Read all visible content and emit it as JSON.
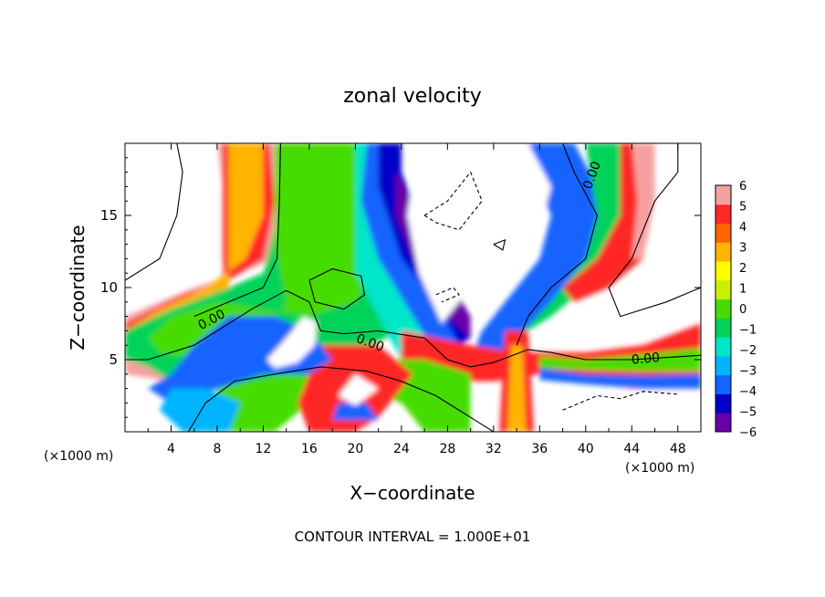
{
  "chart_data": {
    "type": "heatmap",
    "title": "zonal velocity",
    "xlabel": "X−coordinate",
    "ylabel": "Z−coordinate",
    "x_unit_note": "(×1000 m)",
    "z_unit_note": "(×1000 m)",
    "xlim": [
      0,
      50
    ],
    "ylim": [
      0,
      20
    ],
    "x_ticks": [
      4,
      8,
      12,
      16,
      20,
      24,
      28,
      32,
      36,
      40,
      44,
      48
    ],
    "y_ticks": [
      5,
      10,
      15
    ],
    "colorbar": {
      "ticks": [
        6,
        5,
        4,
        3,
        2,
        1,
        0,
        -1,
        -2,
        -3,
        -4,
        -5,
        -6
      ],
      "range": [
        -6,
        6
      ],
      "colors": [
        "#6a00a8",
        "#0000c8",
        "#1464ff",
        "#00b4ff",
        "#00e6c8",
        "#00d25a",
        "#46dc00",
        "#c8f000",
        "#ffff00",
        "#ffb400",
        "#ff6400",
        "#ff2828",
        "#f5a0a0"
      ]
    },
    "contour_labels": [
      "0.00",
      "0.00",
      "0.00",
      "0.00"
    ],
    "footer": "CONTOUR INTERVAL = 1.000E+01"
  }
}
